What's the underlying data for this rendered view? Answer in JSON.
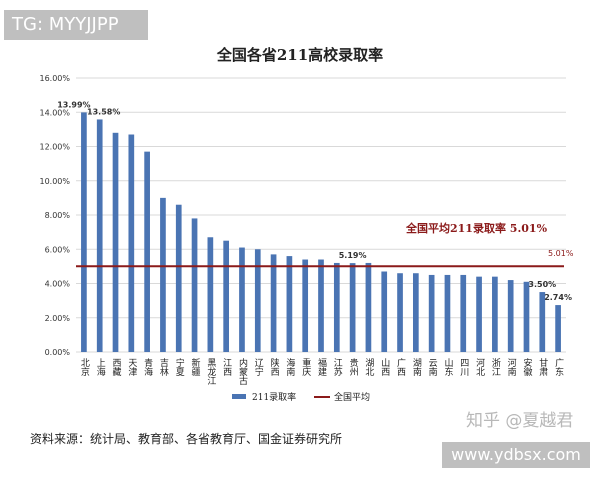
{
  "badges": {
    "telegram": "TG: MYYJJPP",
    "site": "www.ydbsx.com",
    "zhihu": "知乎 @夏越君"
  },
  "source_note": "资料来源：统计局、教育部、各省教育厅、国金证券研究所",
  "colors": {
    "bar": "#4a74b3",
    "avg_line": "#8b1a1a",
    "grid": "#d9d9d9",
    "avg_label": "#8b1a1a"
  },
  "chart_data": {
    "type": "bar",
    "title": "全国各省211高校录取率",
    "categories": [
      "北京",
      "上海",
      "西藏",
      "天津",
      "青海",
      "吉林",
      "宁夏",
      "新疆",
      "黑龙江",
      "江西",
      "内蒙古",
      "辽宁",
      "陕西",
      "海南",
      "重庆",
      "福建",
      "江苏",
      "贵州",
      "湖北",
      "山西",
      "广西",
      "湖南",
      "云南",
      "山东",
      "四川",
      "河北",
      "浙江",
      "河南",
      "安徽",
      "甘肃",
      "广东"
    ],
    "series": [
      {
        "name": "211录取率",
        "values": [
          13.99,
          13.58,
          12.8,
          12.7,
          11.7,
          9.0,
          8.6,
          7.8,
          6.7,
          6.5,
          6.1,
          6.0,
          5.7,
          5.6,
          5.4,
          5.4,
          5.2,
          5.19,
          5.2,
          4.7,
          4.6,
          4.6,
          4.5,
          4.5,
          4.5,
          4.4,
          4.4,
          4.2,
          4.1,
          3.5,
          2.74
        ]
      },
      {
        "name": "全国平均",
        "value": 5.01
      }
    ],
    "ylim": [
      0,
      16
    ],
    "yticks": [
      "0.00%",
      "2.00%",
      "4.00%",
      "6.00%",
      "8.00%",
      "10.00%",
      "12.00%",
      "14.00%",
      "16.00%"
    ],
    "data_labels": [
      {
        "index": 0,
        "text": "13.99%"
      },
      {
        "index": 1,
        "text": "13.58%"
      },
      {
        "index": 17,
        "text": "5.19%"
      },
      {
        "index": 29,
        "text": "3.50%"
      },
      {
        "index": 30,
        "text": "2.74%"
      }
    ],
    "avg_annotation": "全国平均211录取率 5.01%",
    "avg_end_label": "5.01%",
    "legend": [
      {
        "name": "211录取率",
        "kind": "bar"
      },
      {
        "name": "全国平均",
        "kind": "line"
      }
    ],
    "legend_position": "bottom",
    "grid": true
  }
}
